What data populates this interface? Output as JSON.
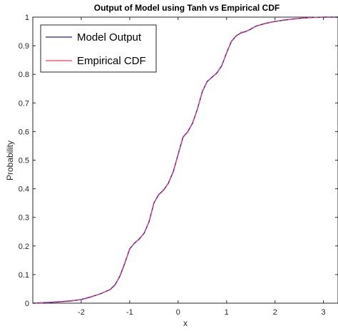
{
  "chart_data": {
    "type": "line",
    "title": "Output of Model using Tanh vs Empirical CDF",
    "xlabel": "x",
    "ylabel": "Probability",
    "xlim": [
      -3,
      3.3
    ],
    "ylim": [
      0,
      1
    ],
    "xticks": [
      -2,
      -1,
      0,
      1,
      2,
      3
    ],
    "xtick_labels": [
      "-2",
      "-1",
      "0",
      "1",
      "2",
      "3"
    ],
    "yticks": [
      0,
      0.1,
      0.2,
      0.3,
      0.4,
      0.5,
      0.6,
      0.7,
      0.8,
      0.9,
      1
    ],
    "ytick_labels": [
      "0",
      "0.1",
      "0.2",
      "0.3",
      "0.4",
      "0.5",
      "0.6",
      "0.7",
      "0.8",
      "0.9",
      "1"
    ],
    "grid": false,
    "legend_position": "top-left",
    "series": [
      {
        "name": "Model Output",
        "color": "#1f1fb4",
        "x": [
          -3.0,
          -2.6,
          -2.2,
          -2.0,
          -1.8,
          -1.6,
          -1.4,
          -1.3,
          -1.2,
          -1.1,
          -1.0,
          -0.9,
          -0.8,
          -0.7,
          -0.6,
          -0.5,
          -0.4,
          -0.3,
          -0.2,
          -0.1,
          0.0,
          0.1,
          0.2,
          0.3,
          0.4,
          0.5,
          0.6,
          0.7,
          0.8,
          0.9,
          1.0,
          1.1,
          1.2,
          1.3,
          1.4,
          1.5,
          1.6,
          1.8,
          2.0,
          2.2,
          2.4,
          2.6,
          2.8,
          3.0,
          3.3
        ],
        "y": [
          0.0,
          0.003,
          0.008,
          0.013,
          0.022,
          0.033,
          0.048,
          0.065,
          0.095,
          0.14,
          0.19,
          0.21,
          0.225,
          0.245,
          0.285,
          0.35,
          0.38,
          0.395,
          0.42,
          0.46,
          0.52,
          0.58,
          0.6,
          0.63,
          0.68,
          0.74,
          0.775,
          0.79,
          0.805,
          0.83,
          0.875,
          0.915,
          0.935,
          0.945,
          0.95,
          0.958,
          0.968,
          0.978,
          0.985,
          0.99,
          0.994,
          0.997,
          0.999,
          1.0,
          1.0
        ]
      },
      {
        "name": "Empirical CDF",
        "color": "#ff3b5c",
        "x": [
          -3.0,
          -2.6,
          -2.2,
          -2.0,
          -1.8,
          -1.6,
          -1.4,
          -1.3,
          -1.2,
          -1.1,
          -1.0,
          -0.9,
          -0.8,
          -0.7,
          -0.6,
          -0.5,
          -0.4,
          -0.3,
          -0.2,
          -0.1,
          0.0,
          0.1,
          0.2,
          0.3,
          0.4,
          0.5,
          0.6,
          0.7,
          0.8,
          0.9,
          1.0,
          1.1,
          1.2,
          1.3,
          1.4,
          1.5,
          1.6,
          1.8,
          2.0,
          2.2,
          2.4,
          2.6,
          2.8,
          3.0,
          3.3
        ],
        "y": [
          0.0,
          0.004,
          0.009,
          0.012,
          0.021,
          0.034,
          0.047,
          0.063,
          0.097,
          0.142,
          0.188,
          0.212,
          0.223,
          0.247,
          0.283,
          0.352,
          0.378,
          0.397,
          0.418,
          0.462,
          0.518,
          0.582,
          0.598,
          0.632,
          0.678,
          0.742,
          0.773,
          0.792,
          0.803,
          0.832,
          0.873,
          0.917,
          0.933,
          0.947,
          0.949,
          0.96,
          0.967,
          0.979,
          0.984,
          0.991,
          0.993,
          0.998,
          0.999,
          1.0,
          1.0
        ]
      }
    ]
  }
}
